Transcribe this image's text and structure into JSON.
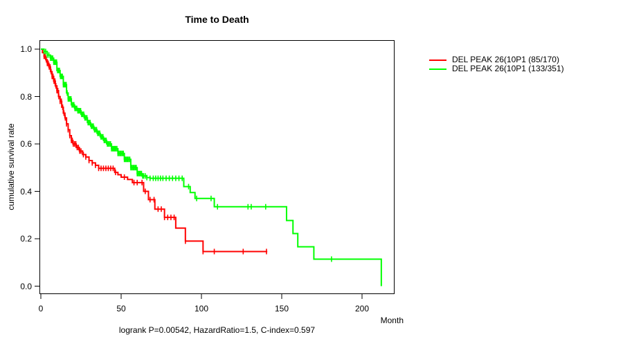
{
  "title": "Time to Death",
  "footnote": "logrank P=0.00542, HazardRatio=1.5, C-index=0.597",
  "axes": {
    "x_label": "Month",
    "y_label": "cumulative survival rate",
    "x_ticks": [
      "0",
      "50",
      "100",
      "150",
      "200"
    ],
    "x_tick_values": [
      0,
      50,
      100,
      150,
      200
    ],
    "y_ticks": [
      "0.0",
      "0.2",
      "0.4",
      "0.6",
      "0.8",
      "1.0"
    ],
    "y_tick_values": [
      0.0,
      0.2,
      0.4,
      0.6,
      0.8,
      1.0
    ]
  },
  "legend": {
    "items": [
      {
        "label": "DEL PEAK 26(10P1 (85/170)",
        "color": "#ff0000"
      },
      {
        "label": "DEL PEAK 26(10P1 (133/351)",
        "color": "#00ff00"
      }
    ]
  },
  "chart_data": {
    "type": "line",
    "subtype": "kaplan-meier-step",
    "title": "Time to Death",
    "xlabel": "Month",
    "ylabel": "cumulative survival rate",
    "xlim": [
      0,
      220
    ],
    "ylim": [
      0.0,
      1.0
    ],
    "grid": false,
    "legend_position": "top-right-outside",
    "annotation": "logrank P=0.00542, HazardRatio=1.5, C-index=0.597",
    "series": [
      {
        "name": "DEL PEAK 26(10P1 (85/170)",
        "color": "#ff0000",
        "end_month": 141,
        "steps": [
          [
            0,
            1.0
          ],
          [
            1,
            0.985
          ],
          [
            2,
            0.97
          ],
          [
            3,
            0.955
          ],
          [
            4,
            0.94
          ],
          [
            5,
            0.925
          ],
          [
            6,
            0.905
          ],
          [
            7,
            0.885
          ],
          [
            8,
            0.865
          ],
          [
            9,
            0.845
          ],
          [
            10,
            0.825
          ],
          [
            11,
            0.8
          ],
          [
            12,
            0.78
          ],
          [
            13,
            0.755
          ],
          [
            14,
            0.73
          ],
          [
            15,
            0.71
          ],
          [
            16,
            0.685
          ],
          [
            17,
            0.66
          ],
          [
            18,
            0.635
          ],
          [
            19,
            0.615
          ],
          [
            20,
            0.6
          ],
          [
            22,
            0.585
          ],
          [
            24,
            0.57
          ],
          [
            26,
            0.555
          ],
          [
            28,
            0.545
          ],
          [
            30,
            0.53
          ],
          [
            32,
            0.52
          ],
          [
            34,
            0.51
          ],
          [
            36,
            0.497
          ],
          [
            46,
            0.48
          ],
          [
            48,
            0.47
          ],
          [
            50,
            0.46
          ],
          [
            54,
            0.45
          ],
          [
            57,
            0.437
          ],
          [
            64,
            0.4
          ],
          [
            67,
            0.365
          ],
          [
            71,
            0.325
          ],
          [
            77,
            0.29
          ],
          [
            84,
            0.245
          ],
          [
            90,
            0.19
          ],
          [
            101,
            0.146
          ]
        ],
        "censor_months": [
          2,
          2.7,
          3.4,
          4,
          4.6,
          5.2,
          5.8,
          6.4,
          7,
          7.6,
          8.2,
          8.8,
          9.4,
          10,
          10.6,
          11.2,
          12,
          12.8,
          13.6,
          14.4,
          15.2,
          16,
          17,
          18,
          19,
          19.6,
          20.2,
          21,
          21.8,
          22.6,
          23.4,
          24.2,
          25,
          26.5,
          28,
          30,
          32,
          34,
          36,
          37.5,
          39,
          40.5,
          42,
          43.5,
          45,
          46.5,
          52,
          58,
          60,
          63,
          65,
          68,
          70.5,
          73,
          75,
          77,
          79,
          81,
          83,
          90,
          101,
          108,
          126,
          140.5
        ]
      },
      {
        "name": "DEL PEAK 26(10P1 (133/351)",
        "color": "#00ff00",
        "end_month": 212,
        "steps": [
          [
            0,
            1.0
          ],
          [
            2,
            0.99
          ],
          [
            4,
            0.975
          ],
          [
            6,
            0.962
          ],
          [
            8,
            0.945
          ],
          [
            10,
            0.91
          ],
          [
            12,
            0.885
          ],
          [
            14,
            0.85
          ],
          [
            16,
            0.815
          ],
          [
            17,
            0.79
          ],
          [
            19,
            0.765
          ],
          [
            21,
            0.75
          ],
          [
            23,
            0.74
          ],
          [
            25,
            0.725
          ],
          [
            27,
            0.71
          ],
          [
            29,
            0.69
          ],
          [
            31,
            0.675
          ],
          [
            33,
            0.66
          ],
          [
            35,
            0.645
          ],
          [
            37,
            0.63
          ],
          [
            39,
            0.615
          ],
          [
            41,
            0.6
          ],
          [
            44,
            0.58
          ],
          [
            48,
            0.56
          ],
          [
            52,
            0.535
          ],
          [
            56,
            0.5
          ],
          [
            60,
            0.475
          ],
          [
            63,
            0.465
          ],
          [
            66,
            0.458
          ],
          [
            68,
            0.455
          ],
          [
            89,
            0.42
          ],
          [
            93,
            0.395
          ],
          [
            96,
            0.37
          ],
          [
            108,
            0.335
          ],
          [
            153,
            0.277
          ],
          [
            157,
            0.222
          ],
          [
            160,
            0.166
          ],
          [
            170,
            0.114
          ],
          [
            212,
            0.0
          ]
        ],
        "censor_months": [
          2,
          3,
          4,
          5,
          6,
          6.7,
          7.4,
          8,
          8.6,
          9.2,
          9.8,
          10.4,
          11,
          11.6,
          12.2,
          12.8,
          13.4,
          14,
          14.6,
          15.2,
          15.8,
          16.4,
          17,
          17.6,
          18.2,
          18.8,
          19.4,
          20,
          20.6,
          21.2,
          21.8,
          22.4,
          23,
          23.6,
          24.2,
          24.8,
          25.4,
          26,
          26.7,
          27.4,
          28,
          28.7,
          29.4,
          30,
          30.7,
          31.4,
          32,
          32.7,
          33.4,
          34,
          34.7,
          35.4,
          36,
          36.7,
          37.4,
          38,
          38.7,
          39.4,
          40,
          40.7,
          41.4,
          42,
          42.7,
          43.4,
          44,
          44.7,
          45.4,
          46,
          46.7,
          47.4,
          48,
          48.7,
          49.4,
          50,
          50.7,
          51.4,
          52,
          52.7,
          53.4,
          54,
          54.7,
          55.4,
          56,
          56.7,
          57.4,
          58,
          58.7,
          59.4,
          60,
          60.7,
          61.4,
          62,
          62.7,
          63.4,
          64,
          65,
          66,
          68,
          70,
          71.5,
          73,
          74.5,
          76,
          78,
          80,
          82,
          84,
          86,
          88,
          92,
          97,
          106,
          110,
          129,
          131,
          140,
          181
        ]
      }
    ]
  }
}
